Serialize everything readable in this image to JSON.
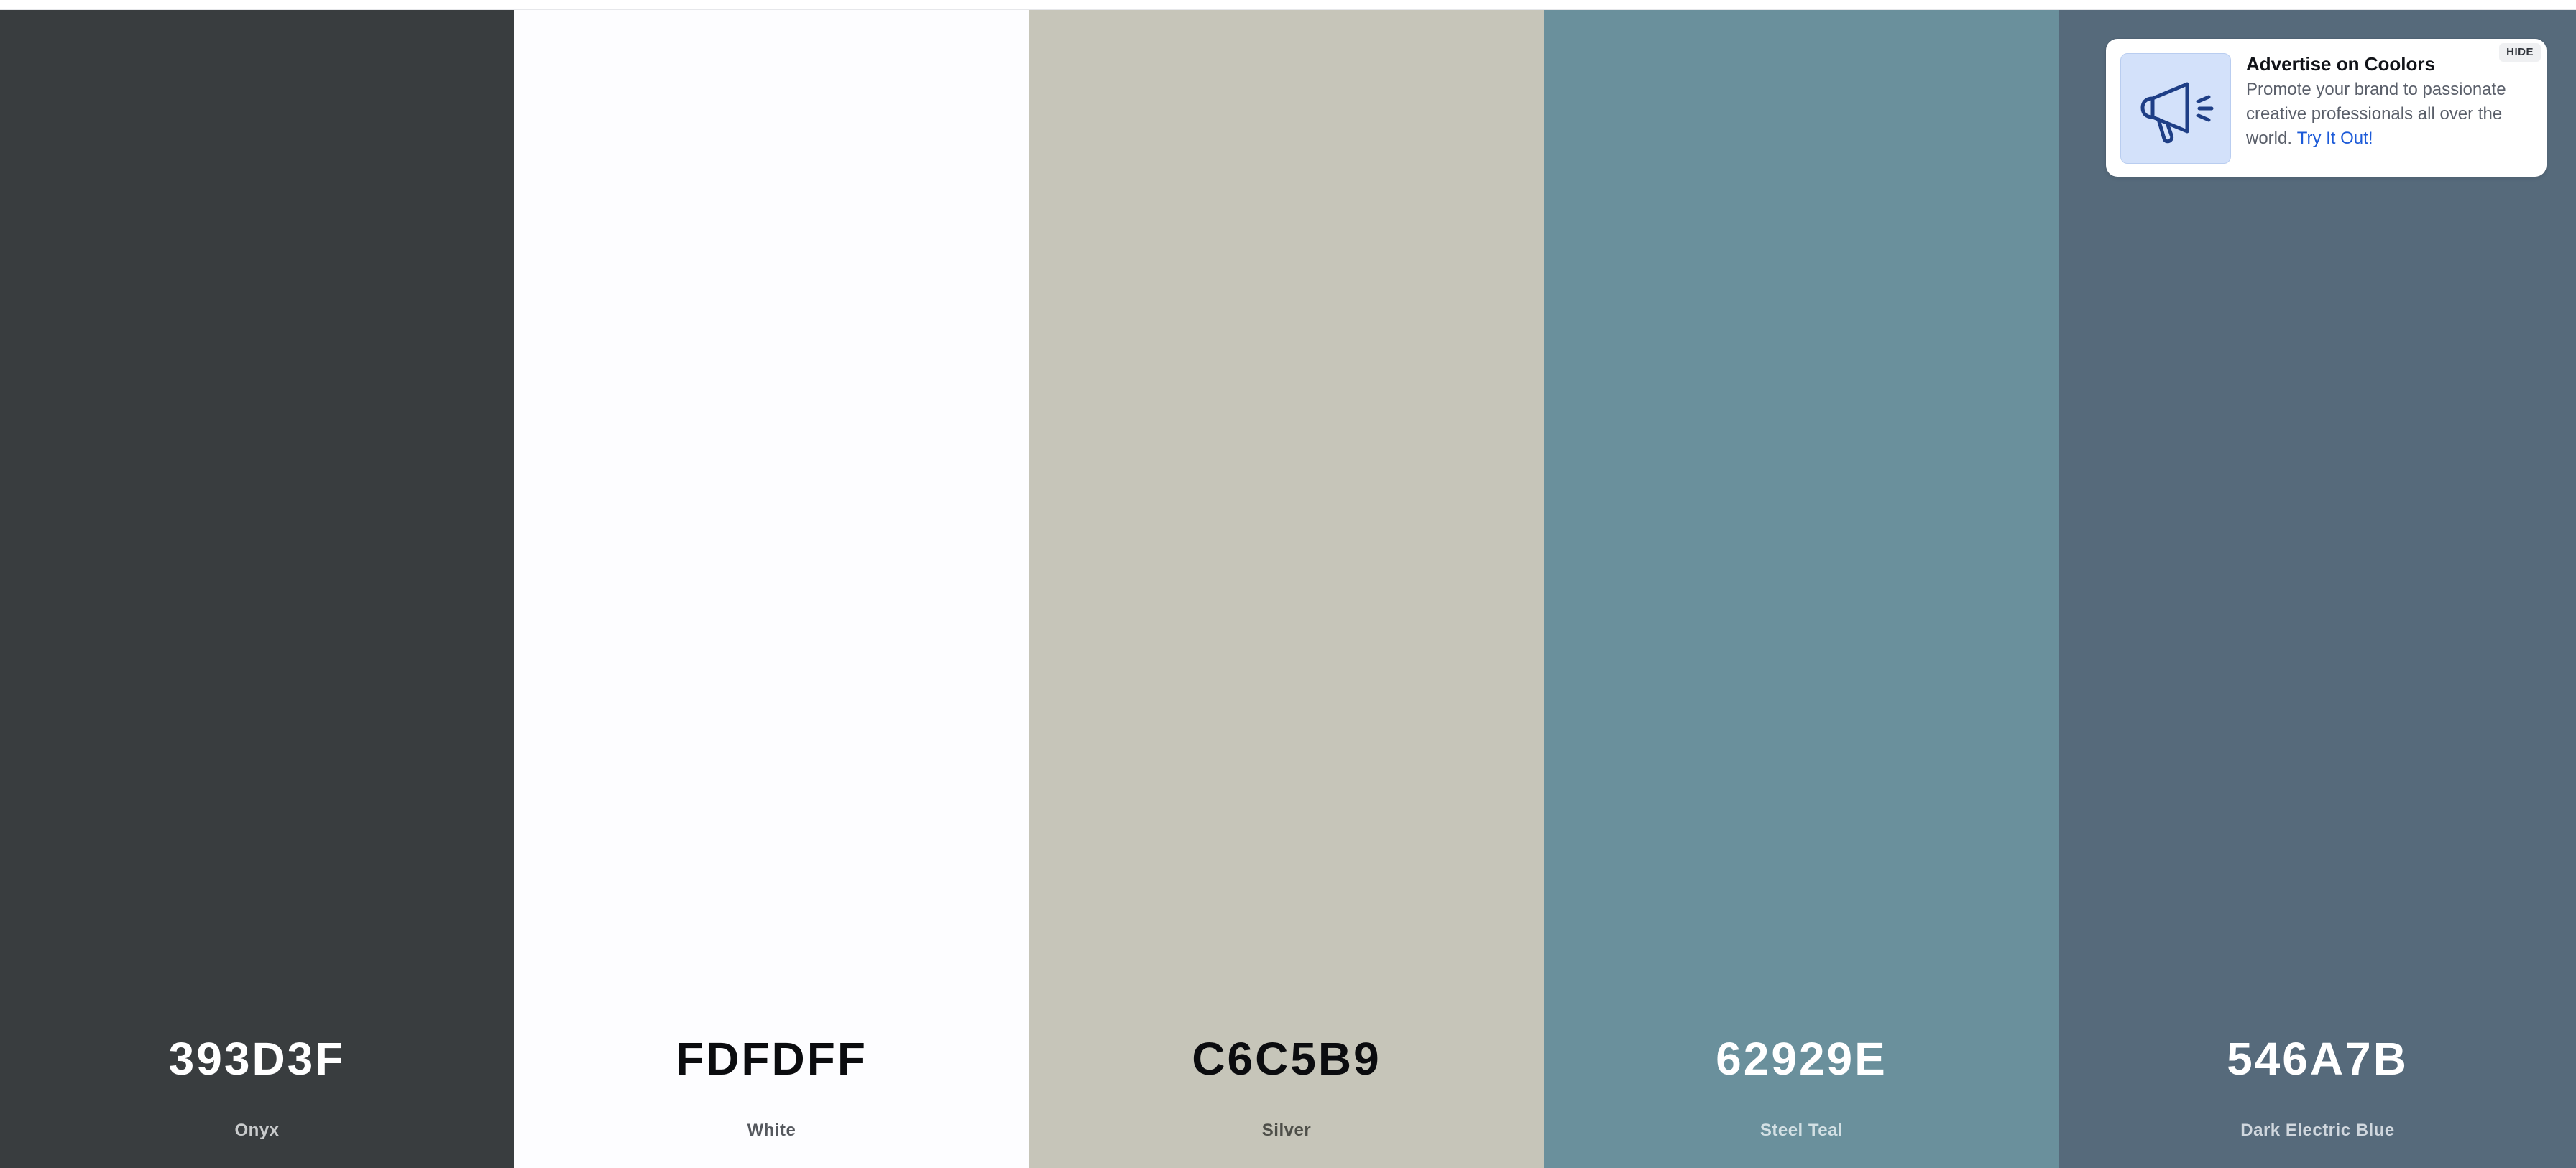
{
  "palette": {
    "colors": [
      {
        "hex": "393D3F",
        "name": "Onyx",
        "bg": "#393D3F",
        "hex_color": "#FFFFFF",
        "name_color": "#C9CBCC"
      },
      {
        "hex": "FDFDFF",
        "name": "White",
        "bg": "#FDFDFF",
        "hex_color": "#0B0C0F",
        "name_color": "#55585E"
      },
      {
        "hex": "C6C5B9",
        "name": "Silver",
        "bg": "#C6C5B9",
        "hex_color": "#0B0C0F",
        "name_color": "#4D4E48"
      },
      {
        "hex": "62929E",
        "name": "Steel Teal",
        "bg": "#6A909C",
        "hex_color": "#FFFFFF",
        "name_color": "#D3E0E4"
      },
      {
        "hex": "546A7B",
        "name": "Dark Electric Blue",
        "bg": "#566A7B",
        "hex_color": "#FFFFFF",
        "name_color": "#D0D7DE"
      }
    ]
  },
  "ad": {
    "title": "Advertise on Coolors",
    "body": "Promote your brand to passionate creative professionals all over the world.",
    "link_label": "Try It Out!",
    "hide_label": "HIDE",
    "icon": "megaphone-icon",
    "accent": "#1C5AD8",
    "icon_bg": "#D3E1FA"
  }
}
